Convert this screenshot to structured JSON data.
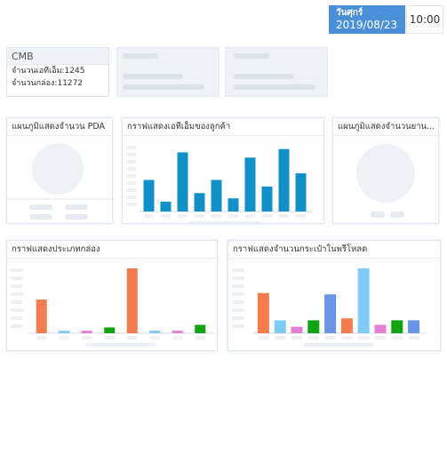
{
  "header": {
    "day": "วันศุกร์",
    "date": "2019/08/23",
    "time": "10:00",
    "date_color": "#4a90d9"
  },
  "summary": {
    "title": "CMB",
    "atm_line": "จำนวนเอทีเอ็ม:1245",
    "box_line": "จำนวนกล่อง:11272"
  },
  "charts": {
    "pda": {
      "title": "แผนภูมิแสดงจำนวน PDA"
    },
    "atm": {
      "title": "กราฟแสดงเอทีเอ็มของลูกค้า"
    },
    "vehicle": {
      "title": "แผนภูมิแสดงจำนวนยาน..."
    },
    "boxtype": {
      "title": "กราฟแสดงประเภทกล่อง"
    },
    "preload": {
      "title": "กราฟแสดงจำนวนกระเป๋าในพรีโหลด"
    }
  },
  "chart_data": [
    {
      "type": "bar",
      "id": "atm",
      "color": "#1190c8",
      "values": [
        48,
        15,
        90,
        28,
        48,
        20,
        82,
        38,
        95,
        58
      ],
      "ylim": [
        0,
        100
      ]
    },
    {
      "type": "bar",
      "id": "boxtype",
      "values": [
        52,
        4,
        4,
        9,
        100,
        4,
        4,
        13
      ],
      "colors": [
        "#f47c4e",
        "#7ecbf5",
        "#e67fd6",
        "#12a312",
        "#f47c4e",
        "#7ecbf5",
        "#e67fd6",
        "#12a312"
      ],
      "ylim": [
        0,
        100
      ]
    },
    {
      "type": "bar",
      "id": "preload",
      "values": [
        62,
        20,
        10,
        20,
        60,
        23,
        100,
        13,
        20,
        20
      ],
      "colors": [
        "#f47c4e",
        "#7ecbf5",
        "#e67fd6",
        "#12a312",
        "#6a94e8",
        "#f47c4e",
        "#7ecbf5",
        "#e67fd6",
        "#12a312",
        "#6a94e8"
      ],
      "ylim": [
        0,
        100
      ]
    }
  ]
}
